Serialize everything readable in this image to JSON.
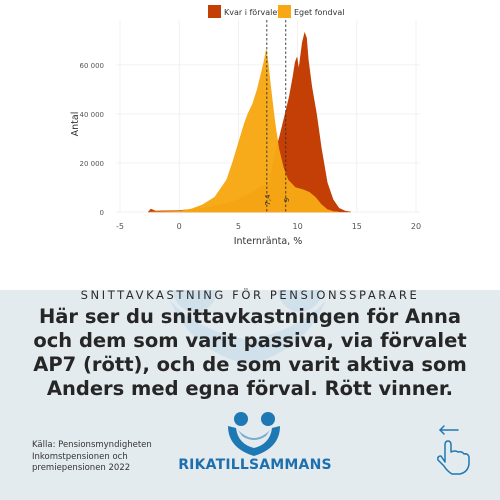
{
  "colors": {
    "kvar": "#c33f06",
    "eget": "#f7a814",
    "panel_bg": "#e4ebef",
    "brand_blue": "#1e78b4",
    "logo_light": "#cfe0ec"
  },
  "chart_data": {
    "type": "area",
    "title": "",
    "xlabel": "Internränta, %",
    "ylabel": "Antal",
    "xlim": [
      -5,
      20
    ],
    "ylim": [
      0,
      75000
    ],
    "x_ticks": [
      "-5",
      "0",
      "5",
      "10",
      "15",
      "20"
    ],
    "y_ticks": [
      "0",
      "20 000",
      "40 000",
      "60 000"
    ],
    "legend_position": "top",
    "series": [
      {
        "name": "Kvar i förvalet",
        "color": "#c33f06",
        "points": [
          [
            -2.6,
            0
          ],
          [
            -2.4,
            1200
          ],
          [
            -2,
            400
          ],
          [
            0,
            600
          ],
          [
            2,
            1500
          ],
          [
            4,
            3500
          ],
          [
            5,
            5000
          ],
          [
            6,
            7500
          ],
          [
            7,
            10500
          ],
          [
            7.6,
            11500
          ],
          [
            7.8,
            17000
          ],
          [
            8.1,
            24000
          ],
          [
            8.5,
            31000
          ],
          [
            8.9,
            39000
          ],
          [
            9.3,
            47000
          ],
          [
            9.6,
            55000
          ],
          [
            9.8,
            61000
          ],
          [
            9.95,
            63000
          ],
          [
            10.1,
            58000
          ],
          [
            10.4,
            69000
          ],
          [
            10.6,
            73000
          ],
          [
            10.75,
            71000
          ],
          [
            10.9,
            62000
          ],
          [
            11.2,
            51000
          ],
          [
            11.6,
            40000
          ],
          [
            12,
            26000
          ],
          [
            12.5,
            12000
          ],
          [
            13,
            5000
          ],
          [
            13.5,
            1500
          ],
          [
            14,
            400
          ],
          [
            14.5,
            0
          ]
        ]
      },
      {
        "name": "Eget fondval",
        "color": "#f7a814",
        "points": [
          [
            -2.5,
            0
          ],
          [
            0,
            300
          ],
          [
            1,
            1200
          ],
          [
            2,
            3000
          ],
          [
            3,
            6000
          ],
          [
            4,
            13000
          ],
          [
            4.5,
            20000
          ],
          [
            5,
            28000
          ],
          [
            5.5,
            36000
          ],
          [
            5.8,
            40000
          ],
          [
            6.2,
            44000
          ],
          [
            6.6,
            50000
          ],
          [
            7,
            58000
          ],
          [
            7.2,
            62000
          ],
          [
            7.35,
            66000
          ],
          [
            7.5,
            61000
          ],
          [
            7.7,
            52000
          ],
          [
            7.9,
            44000
          ],
          [
            8.1,
            36000
          ],
          [
            8.4,
            26000
          ],
          [
            8.8,
            18000
          ],
          [
            9.2,
            13000
          ],
          [
            9.8,
            10000
          ],
          [
            10.5,
            9000
          ],
          [
            11,
            8000
          ],
          [
            11.5,
            6000
          ],
          [
            12,
            3000
          ],
          [
            12.5,
            1000
          ],
          [
            13,
            200
          ],
          [
            13.5,
            0
          ]
        ]
      }
    ],
    "reference_lines": [
      {
        "x": 7.4,
        "label": "7,4"
      },
      {
        "x": 9,
        "label": "9"
      }
    ]
  },
  "subtitle": "SNITTAVKASTNING FÖR PENSIONSSPARARE",
  "headline": "Här ser du snittavkastningen för Anna och dem som varit passiva, via förvalet AP7 (rött), och de som varit aktiva som Anders med egna förval. Rött vinner.",
  "source": {
    "line1": "Källa: Pensionsmyndigheten",
    "line2": "Inkomstpensionen och",
    "line3": "premiepensionen 2022"
  },
  "brand": "RIKATILLSAMMANS",
  "icons": {
    "top": "lightbulb-icon",
    "logo": "heart-hands-logo",
    "corner": "swipe-hand-icon"
  }
}
